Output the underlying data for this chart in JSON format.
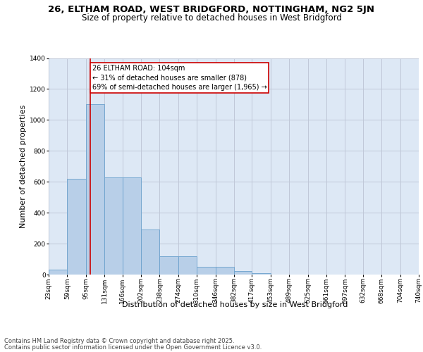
{
  "title_line1": "26, ELTHAM ROAD, WEST BRIDGFORD, NOTTINGHAM, NG2 5JN",
  "title_line2": "Size of property relative to detached houses in West Bridgford",
  "xlabel": "Distribution of detached houses by size in West Bridgford",
  "ylabel": "Number of detached properties",
  "bin_edges": [
    23,
    59,
    95,
    131,
    166,
    202,
    238,
    274,
    310,
    346,
    382,
    417,
    453,
    489,
    525,
    561,
    597,
    632,
    668,
    704,
    740
  ],
  "bin_labels": [
    "23sqm",
    "59sqm",
    "95sqm",
    "131sqm",
    "166sqm",
    "202sqm",
    "238sqm",
    "274sqm",
    "310sqm",
    "346sqm",
    "382sqm",
    "417sqm",
    "453sqm",
    "489sqm",
    "525sqm",
    "561sqm",
    "597sqm",
    "632sqm",
    "668sqm",
    "704sqm",
    "740sqm"
  ],
  "counts": [
    30,
    620,
    1100,
    630,
    630,
    290,
    120,
    120,
    50,
    50,
    25,
    10,
    0,
    0,
    0,
    0,
    0,
    0,
    0,
    0
  ],
  "bar_facecolor": "#b8cfe8",
  "bar_edgecolor": "#6aa0cc",
  "grid_color": "#c0c8d8",
  "background_color": "#dde8f5",
  "fig_background": "#ffffff",
  "property_line_x": 104,
  "property_line_color": "#cc0000",
  "annotation_text": "26 ELTHAM ROAD: 104sqm\n← 31% of detached houses are smaller (878)\n69% of semi-detached houses are larger (1,965) →",
  "annotation_box_color": "#ffffff",
  "annotation_box_edge": "#cc0000",
  "ylim": [
    0,
    1400
  ],
  "yticks": [
    0,
    200,
    400,
    600,
    800,
    1000,
    1200,
    1400
  ],
  "footer_line1": "Contains HM Land Registry data © Crown copyright and database right 2025.",
  "footer_line2": "Contains public sector information licensed under the Open Government Licence v3.0.",
  "title_fontsize": 9.5,
  "subtitle_fontsize": 8.5,
  "axis_label_fontsize": 8,
  "tick_fontsize": 6.5,
  "annotation_fontsize": 7,
  "footer_fontsize": 6
}
